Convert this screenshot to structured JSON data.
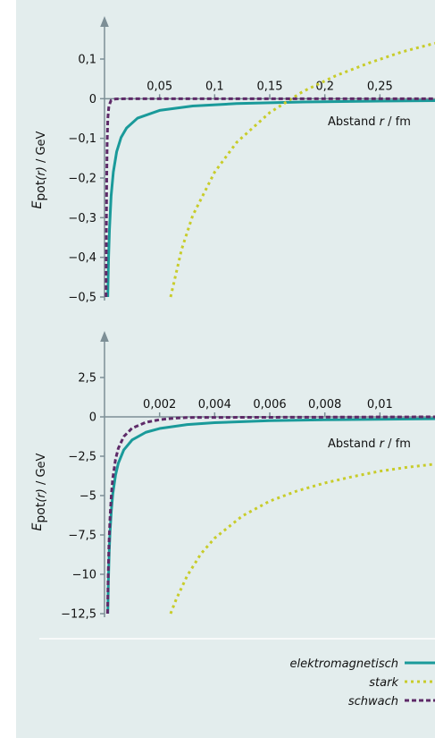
{
  "colors": {
    "panel_background": "#e3eded",
    "axis": "#7d8f96",
    "separator": "#ffffff",
    "elektromagnetisch": "#1a9a9a",
    "stark": "#c8cc2a",
    "schwach": "#5e2a68"
  },
  "legend": {
    "items": [
      {
        "key": "elektromagnetisch",
        "label": "elektromagnetisch",
        "style": "solid"
      },
      {
        "key": "stark",
        "label": "stark",
        "style": "dotted"
      },
      {
        "key": "schwach",
        "label": "schwach",
        "style": "dashed"
      }
    ]
  },
  "chart_data": [
    {
      "type": "line",
      "xlabel": {
        "prefix": "Abstand ",
        "var": "r",
        "suffix": " / fm"
      },
      "ylabel": {
        "var": "E",
        "sub": "pot",
        "arg": "(r)",
        "unit": " / GeV"
      },
      "xlim": [
        0,
        0.3
      ],
      "ylim": [
        -0.5,
        0.1
      ],
      "xticks": [
        0.05,
        0.1,
        0.15,
        0.2,
        0.25
      ],
      "xtick_labels": [
        "0,05",
        "0,1",
        "0,15",
        "0,2",
        "0,25"
      ],
      "yticks": [
        0.1,
        0,
        -0.1,
        -0.2,
        -0.3,
        -0.4,
        -0.5
      ],
      "ytick_labels": [
        "0,1",
        "0",
        "−0,1",
        "−0,2",
        "−0,3",
        "−0,4",
        "−0,5"
      ],
      "grid": false,
      "series": [
        {
          "key": "elektromagnetisch",
          "x": [
            0.00295,
            0.0033,
            0.0037,
            0.0045,
            0.006,
            0.008,
            0.011,
            0.015,
            0.02,
            0.03,
            0.05,
            0.08,
            0.12,
            0.18,
            0.25,
            0.3
          ],
          "y": [
            -0.5,
            -0.45,
            -0.4,
            -0.33,
            -0.245,
            -0.185,
            -0.134,
            -0.098,
            -0.074,
            -0.049,
            -0.0295,
            -0.0184,
            -0.0123,
            -0.0082,
            -0.0059,
            -0.0049
          ]
        },
        {
          "key": "stark",
          "x": [
            0.06,
            0.07,
            0.08,
            0.1,
            0.12,
            0.15,
            0.18,
            0.21,
            0.24,
            0.27,
            0.3
          ],
          "y": [
            -0.5,
            -0.38,
            -0.295,
            -0.185,
            -0.11,
            -0.035,
            0.018,
            0.058,
            0.09,
            0.118,
            0.14
          ]
        },
        {
          "key": "schwach",
          "x": [
            0.0014,
            0.0017,
            0.002,
            0.0024,
            0.003,
            0.004,
            0.006,
            0.01,
            0.02,
            0.3
          ],
          "y": [
            -0.5,
            -0.32,
            -0.2,
            -0.11,
            -0.05,
            -0.018,
            -0.004,
            -0.0006,
            0,
            0
          ]
        }
      ]
    },
    {
      "type": "line",
      "xlabel": {
        "prefix": "Abstand ",
        "var": "r",
        "suffix": " / fm"
      },
      "ylabel": {
        "var": "E",
        "sub": "pot",
        "arg": "(r)",
        "unit": " / GeV"
      },
      "xlim": [
        0,
        0.012
      ],
      "ylim": [
        -12.5,
        2.5
      ],
      "xticks": [
        0.002,
        0.004,
        0.006,
        0.008,
        0.01
      ],
      "xtick_labels": [
        "0,002",
        "0,004",
        "0,006",
        "0,008",
        "0,01"
      ],
      "yticks": [
        2.5,
        0,
        -2.5,
        -5,
        -7.5,
        -10,
        -12.5
      ],
      "ytick_labels": [
        "2,5",
        "0",
        "−2,5",
        "−5",
        "−7,5",
        "−10",
        "−12,5"
      ],
      "grid": false,
      "series": [
        {
          "key": "elektromagnetisch",
          "x": [
            0.00012,
            0.00014,
            0.00017,
            0.0002,
            0.00025,
            0.0003,
            0.0004,
            0.0005,
            0.0007,
            0.001,
            0.0015,
            0.002,
            0.003,
            0.004,
            0.006,
            0.008,
            0.012
          ],
          "y": [
            -12.5,
            -10.5,
            -8.6,
            -7.3,
            -5.9,
            -4.9,
            -3.7,
            -2.95,
            -2.1,
            -1.47,
            -0.98,
            -0.74,
            -0.49,
            -0.37,
            -0.245,
            -0.184,
            -0.123
          ]
        },
        {
          "key": "stark",
          "x": [
            0.0024,
            0.0026,
            0.003,
            0.0035,
            0.004,
            0.005,
            0.006,
            0.007,
            0.008,
            0.009,
            0.01,
            0.011,
            0.012
          ],
          "y": [
            -12.5,
            -11.6,
            -10.1,
            -8.7,
            -7.7,
            -6.3,
            -5.35,
            -4.7,
            -4.2,
            -3.8,
            -3.45,
            -3.2,
            -3.0
          ]
        },
        {
          "key": "schwach",
          "x": [
            0.00011,
            0.00013,
            0.00016,
            0.0002,
            0.00025,
            0.0003,
            0.0004,
            0.0005,
            0.0007,
            0.001,
            0.0015,
            0.002,
            0.0025,
            0.003,
            0.012
          ],
          "y": [
            -12.5,
            -10.4,
            -8.2,
            -6.4,
            -4.9,
            -3.9,
            -2.7,
            -2.0,
            -1.25,
            -0.72,
            -0.35,
            -0.18,
            -0.09,
            -0.04,
            0
          ]
        }
      ]
    }
  ]
}
